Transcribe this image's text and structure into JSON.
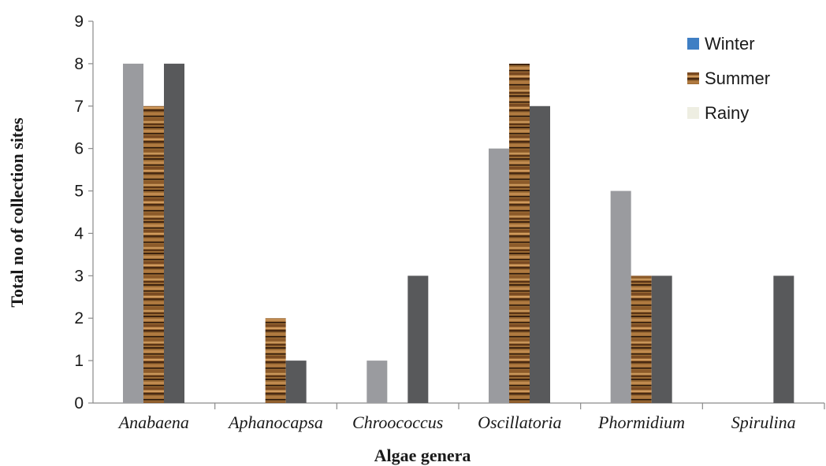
{
  "chart_data": {
    "type": "bar",
    "title": "",
    "xlabel": "Algae genera",
    "ylabel": "Total no of collection sites",
    "ylim": [
      0,
      9
    ],
    "yticks": [
      0,
      1,
      2,
      3,
      4,
      5,
      6,
      7,
      8,
      9
    ],
    "categories": [
      "Anabaena",
      "Aphanocapsa",
      "Chroococcus",
      "Oscillatoria",
      "Phormidium",
      "Spirulina"
    ],
    "series": [
      {
        "name": "Winter",
        "values": [
          8,
          0,
          1,
          6,
          5,
          0
        ],
        "color": "#9a9b9f",
        "legend_color": "#3f7fc4"
      },
      {
        "name": "Summer",
        "values": [
          7,
          2,
          0,
          8,
          3,
          0
        ],
        "color": "#8a5a2b",
        "legend_color": "#8a5a2b"
      },
      {
        "name": "Rainy",
        "values": [
          8,
          1,
          3,
          7,
          3,
          3
        ],
        "color": "#58595b",
        "legend_color": "#eeeee2"
      }
    ],
    "grid": false,
    "legend_position": "top-right"
  }
}
